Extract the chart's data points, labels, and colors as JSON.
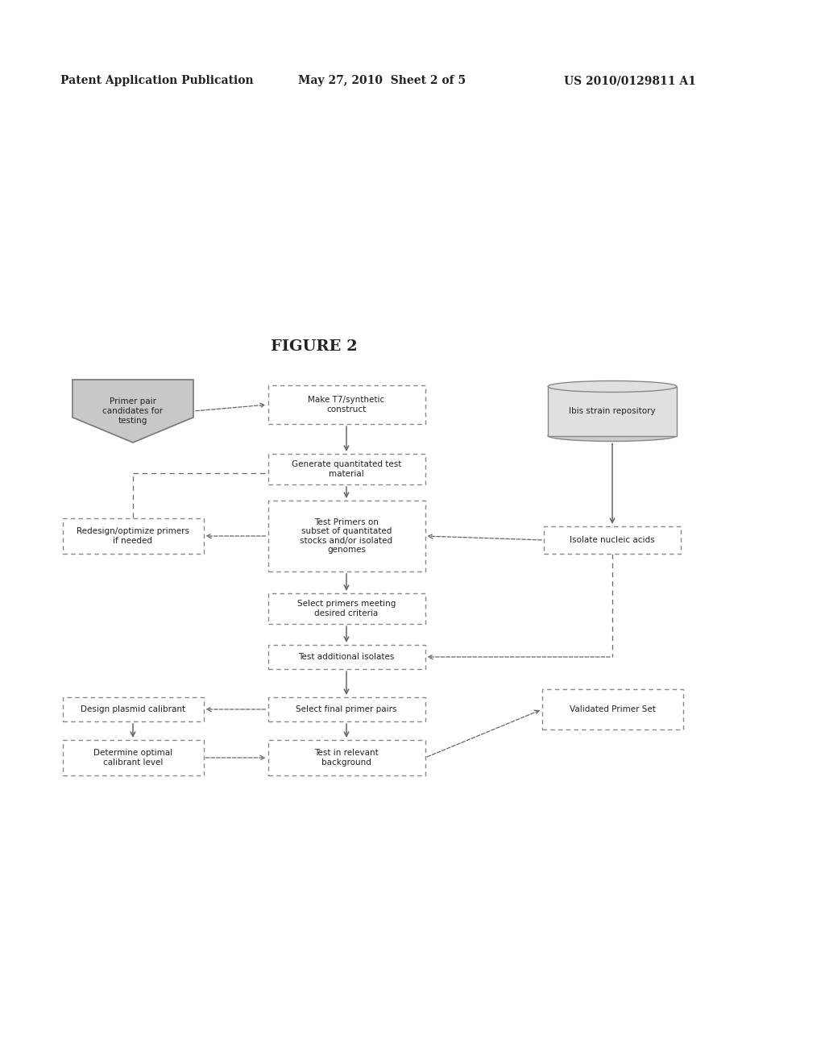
{
  "background_color": "#ffffff",
  "header_left": "Patent Application Publication",
  "header_center": "May 27, 2010  Sheet 2 of 5",
  "header_right": "US 2010/0129811 A1",
  "figure_title": "FIGURE 2",
  "text_color": "#333333",
  "arrow_color": "#666666"
}
